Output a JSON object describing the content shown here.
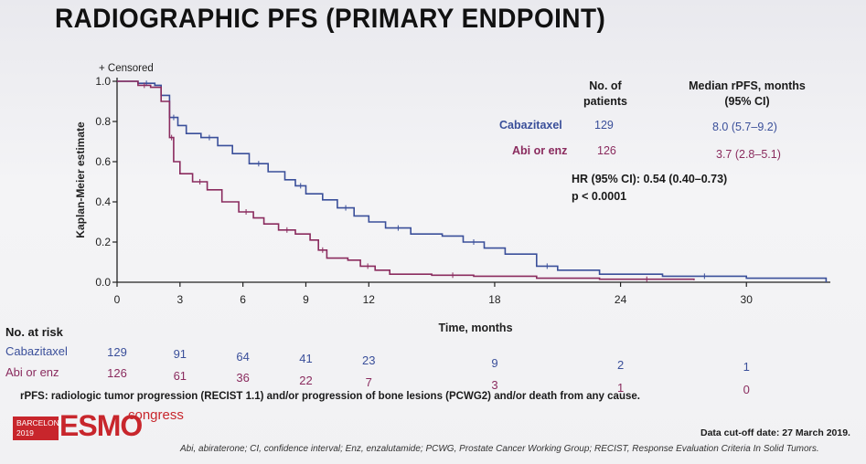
{
  "title": "RADIOGRAPHIC PFS (PRIMARY ENDPOINT)",
  "colors": {
    "cabazitaxel": "#3a4f9a",
    "abi_enz": "#8a2b5e"
  },
  "chart_data": {
    "type": "line",
    "title": "",
    "xlabel": "Time, months",
    "ylabel": "Kaplan-Meier estimate",
    "xlim": [
      0,
      34
    ],
    "ylim": [
      0,
      1.0
    ],
    "x_ticks": [
      0,
      3,
      6,
      9,
      12,
      18,
      24,
      30
    ],
    "y_ticks": [
      "0.0",
      "0.2",
      "0.4",
      "0.6",
      "0.8",
      "1.0"
    ],
    "censored_label": "+ Censored",
    "series": [
      {
        "name": "Cabazitaxel",
        "color": "#3a4f9a",
        "points": [
          [
            0,
            1.0
          ],
          [
            1.0,
            0.99
          ],
          [
            1.8,
            0.98
          ],
          [
            2.1,
            0.93
          ],
          [
            2.5,
            0.82
          ],
          [
            2.9,
            0.78
          ],
          [
            3.3,
            0.74
          ],
          [
            4.0,
            0.72
          ],
          [
            4.8,
            0.68
          ],
          [
            5.5,
            0.64
          ],
          [
            6.3,
            0.59
          ],
          [
            7.2,
            0.55
          ],
          [
            8.0,
            0.51
          ],
          [
            8.5,
            0.48
          ],
          [
            9.0,
            0.44
          ],
          [
            9.8,
            0.41
          ],
          [
            10.5,
            0.37
          ],
          [
            11.3,
            0.33
          ],
          [
            12.0,
            0.3
          ],
          [
            12.8,
            0.27
          ],
          [
            14.0,
            0.24
          ],
          [
            15.5,
            0.23
          ],
          [
            16.5,
            0.2
          ],
          [
            17.5,
            0.17
          ],
          [
            18.5,
            0.14
          ],
          [
            20.0,
            0.08
          ],
          [
            21.0,
            0.06
          ],
          [
            23.0,
            0.04
          ],
          [
            26.0,
            0.03
          ],
          [
            30.0,
            0.02
          ],
          [
            33.8,
            0.0
          ]
        ]
      },
      {
        "name": "Abi or enz",
        "color": "#8a2b5e",
        "points": [
          [
            0,
            1.0
          ],
          [
            1.0,
            0.98
          ],
          [
            1.6,
            0.97
          ],
          [
            2.1,
            0.9
          ],
          [
            2.5,
            0.72
          ],
          [
            2.7,
            0.6
          ],
          [
            3.0,
            0.54
          ],
          [
            3.6,
            0.5
          ],
          [
            4.3,
            0.46
          ],
          [
            5.0,
            0.4
          ],
          [
            5.8,
            0.35
          ],
          [
            6.5,
            0.32
          ],
          [
            7.0,
            0.29
          ],
          [
            7.7,
            0.26
          ],
          [
            8.5,
            0.24
          ],
          [
            9.2,
            0.21
          ],
          [
            9.6,
            0.16
          ],
          [
            10.0,
            0.12
          ],
          [
            11.0,
            0.11
          ],
          [
            11.6,
            0.08
          ],
          [
            12.3,
            0.06
          ],
          [
            13.0,
            0.04
          ],
          [
            15.0,
            0.035
          ],
          [
            17.0,
            0.03
          ],
          [
            20.0,
            0.02
          ],
          [
            23.0,
            0.015
          ],
          [
            27.5,
            0.01
          ]
        ]
      }
    ]
  },
  "summary_table": {
    "col_patients": "No. of patients",
    "col_median": "Median rPFS, months (95% CI)",
    "rows": [
      {
        "name": "Cabazitaxel",
        "patients": "129",
        "median": "8.0 (5.7–9.2)"
      },
      {
        "name": "Abi or enz",
        "patients": "126",
        "median": "3.7 (2.8–5.1)"
      }
    ],
    "hr": "HR (95% CI): 0.54 (0.40–0.73)",
    "p": "p < 0.0001"
  },
  "risk_table": {
    "title": "No. at risk",
    "rows": [
      {
        "name": "Cabazitaxel",
        "values": [
          "129",
          "91",
          "64",
          "41",
          "23",
          "9",
          "2",
          "1"
        ]
      },
      {
        "name": "Abi or enz",
        "values": [
          "126",
          "61",
          "36",
          "22",
          "7",
          "3",
          "1",
          "0"
        ]
      }
    ]
  },
  "footnote": "rPFS: radiologic tumor progression (RECIST 1.1) and/or progression of bone lesions (PCWG2) and/or death from any cause.",
  "cutoff": "Data cut-off date: 27 March 2019.",
  "abbreviations": "Abi, abiraterone; CI, confidence interval; Enz, enzalutamide; PCWG, Prostate Cancer Working Group; RECIST, Response Evaluation Criteria In Solid Tumors.",
  "logo": {
    "city": "BARCELONA",
    "year": "2019",
    "brand": "ESMO",
    "word": "congress"
  }
}
